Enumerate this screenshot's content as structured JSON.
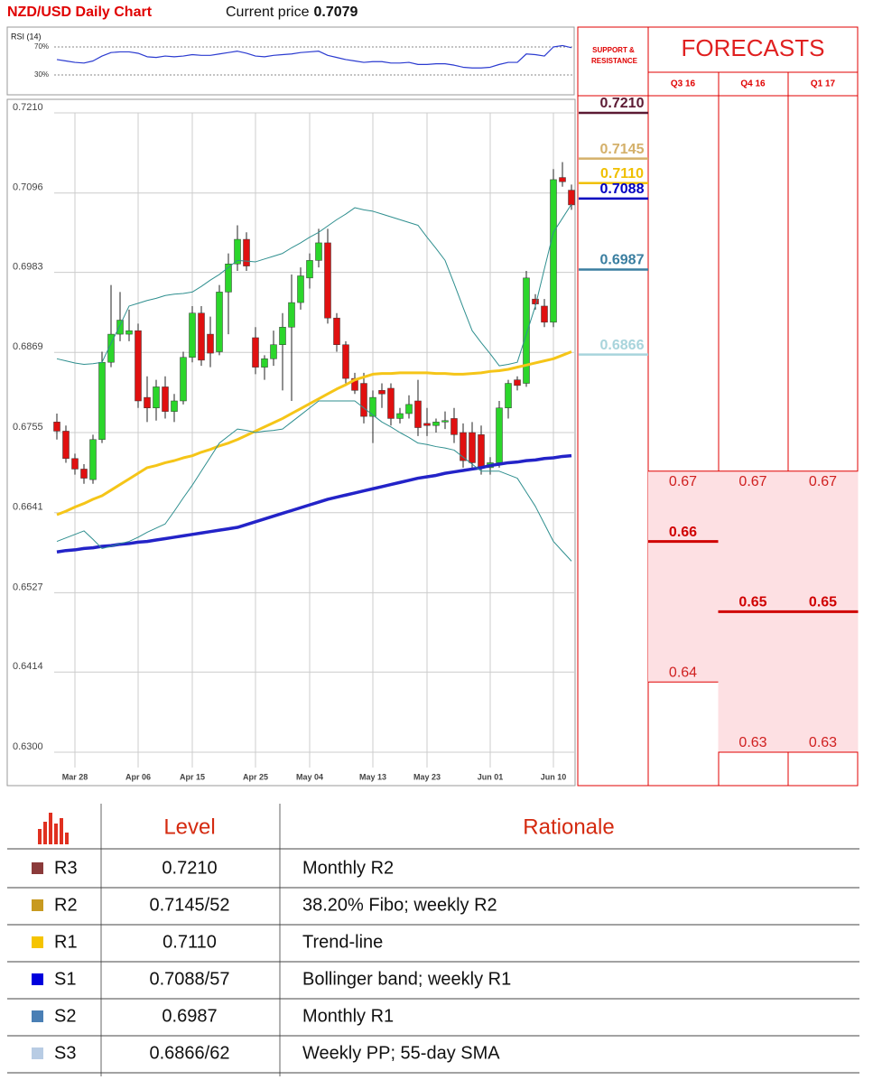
{
  "header": {
    "title": "NZD/USD Daily Chart",
    "current_price_label": "Current price",
    "current_price": 0.7079
  },
  "chart_data": [
    {
      "type": "line",
      "title": "RSI (14)",
      "ylim": [
        0,
        100
      ],
      "yticks": [
        {
          "value": 30,
          "label": "30%"
        },
        {
          "value": 70,
          "label": "70%"
        }
      ],
      "series": [
        {
          "color": "#2b3bd0",
          "values": [
            52,
            50,
            48,
            47,
            50,
            57,
            62,
            63,
            63,
            61,
            56,
            55,
            57,
            56,
            57,
            59,
            58,
            58,
            60,
            62,
            64,
            61,
            57,
            56,
            58,
            59,
            60,
            62,
            63,
            64,
            58,
            55,
            52,
            50,
            48,
            49,
            49,
            47,
            47,
            48,
            45,
            45,
            46,
            46,
            44,
            41,
            40,
            40,
            41,
            45,
            48,
            48,
            60,
            59,
            57,
            70,
            72,
            69
          ]
        }
      ]
    },
    {
      "type": "candlestick",
      "categories": [
        null,
        null,
        "Mar 28",
        null,
        null,
        null,
        null,
        null,
        null,
        "Apr 06",
        null,
        null,
        null,
        null,
        null,
        "Apr 15",
        null,
        null,
        null,
        null,
        null,
        null,
        "Apr 25",
        null,
        null,
        null,
        null,
        null,
        "May 04",
        null,
        null,
        null,
        null,
        null,
        null,
        "May 13",
        null,
        null,
        null,
        null,
        null,
        "May 23",
        null,
        null,
        null,
        null,
        null,
        null,
        "Jun 01",
        null,
        null,
        null,
        null,
        null,
        null,
        "Jun 10",
        null,
        null
      ],
      "open": [
        0.677,
        0.6757,
        0.6718,
        0.6703,
        0.6688,
        0.6745,
        0.6855,
        0.6895,
        0.6895,
        0.69,
        0.6805,
        0.679,
        0.682,
        0.6785,
        0.68,
        0.6862,
        0.6925,
        0.6895,
        0.687,
        0.6955,
        0.6995,
        0.703,
        0.689,
        0.6848,
        0.686,
        0.688,
        0.6905,
        0.694,
        0.6975,
        0.7,
        0.7025,
        0.6918,
        0.688,
        0.6832,
        0.6825,
        0.6778,
        0.6815,
        0.6818,
        0.6775,
        0.6782,
        0.68,
        0.6768,
        0.6765,
        0.677,
        0.6775,
        0.6755,
        0.6755,
        0.6752,
        0.6705,
        0.6712,
        0.679,
        0.683,
        0.6825,
        0.6945,
        0.6935,
        0.6912,
        0.7118,
        0.71
      ],
      "high": [
        0.6782,
        0.6765,
        0.6725,
        0.671,
        0.6752,
        0.687,
        0.6965,
        0.6955,
        0.693,
        0.691,
        0.6835,
        0.683,
        0.6835,
        0.681,
        0.687,
        0.6935,
        0.6935,
        0.692,
        0.6965,
        0.701,
        0.705,
        0.704,
        0.6905,
        0.6865,
        0.69,
        0.6925,
        0.698,
        0.699,
        0.701,
        0.7045,
        0.7045,
        0.6925,
        0.6885,
        0.684,
        0.684,
        0.6815,
        0.6825,
        0.6825,
        0.679,
        0.6808,
        0.683,
        0.679,
        0.6775,
        0.6785,
        0.679,
        0.6768,
        0.677,
        0.6765,
        0.672,
        0.68,
        0.683,
        0.6835,
        0.6985,
        0.6952,
        0.6945,
        0.713,
        0.714,
        0.7108
      ],
      "low": [
        0.6745,
        0.6712,
        0.6695,
        0.6682,
        0.6682,
        0.674,
        0.6848,
        0.6885,
        0.6885,
        0.679,
        0.677,
        0.6772,
        0.6775,
        0.677,
        0.6795,
        0.6855,
        0.685,
        0.6848,
        0.6865,
        0.6895,
        0.6985,
        0.6985,
        0.6838,
        0.683,
        0.685,
        0.6815,
        0.68,
        0.693,
        0.696,
        0.699,
        0.691,
        0.687,
        0.6825,
        0.681,
        0.6768,
        0.674,
        0.679,
        0.6765,
        0.6768,
        0.6775,
        0.675,
        0.675,
        0.6755,
        0.676,
        0.674,
        0.6705,
        0.6702,
        0.6695,
        0.6695,
        0.6705,
        0.6775,
        0.6815,
        0.682,
        0.693,
        0.6905,
        0.6905,
        0.7105,
        0.7072
      ],
      "close": [
        0.6757,
        0.6718,
        0.6703,
        0.669,
        0.6745,
        0.6855,
        0.6895,
        0.6915,
        0.69,
        0.68,
        0.679,
        0.682,
        0.6785,
        0.68,
        0.6862,
        0.6925,
        0.6858,
        0.6868,
        0.6955,
        0.6995,
        0.703,
        0.6992,
        0.6848,
        0.686,
        0.688,
        0.6905,
        0.694,
        0.6978,
        0.7,
        0.7025,
        0.6918,
        0.688,
        0.6832,
        0.6815,
        0.6778,
        0.6805,
        0.681,
        0.6775,
        0.6782,
        0.6795,
        0.6762,
        0.6765,
        0.677,
        0.6772,
        0.6752,
        0.6715,
        0.6712,
        0.6705,
        0.6712,
        0.679,
        0.6825,
        0.6822,
        0.6975,
        0.6938,
        0.6912,
        0.7115,
        0.7112,
        0.7079
      ],
      "up_color": "#2bd62b",
      "down_color": "#e01010",
      "series": [
        {
          "color": "#f5c518",
          "width": 3,
          "values": [
            0.6638,
            0.6643,
            0.6649,
            0.6654,
            0.666,
            0.6665,
            0.6673,
            0.6681,
            0.6689,
            0.6697,
            0.6705,
            0.6708,
            0.6712,
            0.6715,
            0.6719,
            0.6722,
            0.6727,
            0.6731,
            0.6736,
            0.674,
            0.6745,
            0.6751,
            0.6757,
            0.6763,
            0.6769,
            0.6775,
            0.6782,
            0.6789,
            0.6796,
            0.6803,
            0.681,
            0.6817,
            0.6823,
            0.683,
            0.6834,
            0.6838,
            0.6839,
            0.6839,
            0.684,
            0.684,
            0.684,
            0.684,
            0.6839,
            0.6839,
            0.6838,
            0.6838,
            0.6839,
            0.684,
            0.6842,
            0.6843,
            0.6845,
            0.6848,
            0.6851,
            0.6854,
            0.6857,
            0.686,
            0.6865,
            0.687
          ]
        },
        {
          "color": "#2323c8",
          "width": 3.5,
          "values": [
            0.6585,
            0.6587,
            0.6588,
            0.659,
            0.6591,
            0.6593,
            0.6594,
            0.6596,
            0.6597,
            0.6599,
            0.66,
            0.6602,
            0.6604,
            0.6606,
            0.6608,
            0.661,
            0.6612,
            0.6614,
            0.6616,
            0.6618,
            0.662,
            0.6624,
            0.6628,
            0.6632,
            0.6636,
            0.664,
            0.6644,
            0.6648,
            0.6652,
            0.6656,
            0.666,
            0.6663,
            0.6666,
            0.6669,
            0.6672,
            0.6675,
            0.6678,
            0.6681,
            0.6684,
            0.6687,
            0.669,
            0.6692,
            0.6694,
            0.6697,
            0.6699,
            0.6701,
            0.6703,
            0.6705,
            0.6708,
            0.671,
            0.6712,
            0.6713,
            0.6715,
            0.6716,
            0.6718,
            0.6719,
            0.6721,
            0.6722
          ]
        },
        {
          "color": "#2f8f8f",
          "width": 1,
          "values": [
            0.686,
            0.6857,
            0.6854,
            0.6852,
            0.6853,
            0.6855,
            0.6882,
            0.6908,
            0.6935,
            0.6939,
            0.6943,
            0.6946,
            0.695,
            0.6952,
            0.6953,
            0.6955,
            0.6963,
            0.6972,
            0.698,
            0.699,
            0.7,
            0.6999,
            0.6998,
            0.7002,
            0.7006,
            0.701,
            0.7018,
            0.7025,
            0.7033,
            0.704,
            0.7049,
            0.7058,
            0.7066,
            0.7075,
            0.7072,
            0.707,
            0.7066,
            0.7062,
            0.7058,
            0.7054,
            0.705,
            0.7033,
            0.7017,
            0.7,
            0.6967,
            0.6933,
            0.69,
            0.6883,
            0.6867,
            0.685,
            0.6852,
            0.6855,
            0.6895,
            0.6935,
            0.6988,
            0.704,
            0.706,
            0.708
          ]
        },
        {
          "color": "#2f8f8f",
          "width": 1,
          "values": [
            0.66,
            0.6605,
            0.661,
            0.6615,
            0.6603,
            0.659,
            0.6593,
            0.6597,
            0.66,
            0.6606,
            0.6613,
            0.6619,
            0.6625,
            0.6643,
            0.6662,
            0.668,
            0.67,
            0.672,
            0.674,
            0.675,
            0.676,
            0.6758,
            0.6755,
            0.6757,
            0.6758,
            0.676,
            0.677,
            0.678,
            0.679,
            0.68,
            0.68,
            0.68,
            0.68,
            0.68,
            0.679,
            0.678,
            0.677,
            0.6763,
            0.6755,
            0.6748,
            0.674,
            0.6738,
            0.6735,
            0.6733,
            0.673,
            0.672,
            0.671,
            0.67,
            0.67,
            0.67,
            0.6695,
            0.669,
            0.667,
            0.665,
            0.6625,
            0.66,
            0.6586,
            0.6572
          ]
        }
      ],
      "ylim": [
        0.63,
        0.721
      ],
      "yticks": [
        {
          "value": 0.721,
          "label": "0.7210"
        },
        0.7096,
        0.6983,
        0.6869,
        0.6755,
        0.6641,
        0.6527,
        0.6414,
        {
          "value": 0.63,
          "label": "0.6300"
        }
      ],
      "grid": true,
      "levels": {
        "title": "SUPPORT & RESISTANCE",
        "values": [
          {
            "value": 0.721,
            "label": "0.7210"
          },
          0.7145,
          {
            "value": 0.711,
            "label": "0.7110"
          },
          0.7088,
          0.6987,
          0.6866
        ],
        "colors": [
          "#5c1a33",
          "#d4b06a",
          "#f0c000",
          "#0000c0",
          "#3a7ea0",
          "#a8d4dc"
        ]
      },
      "forecasts": {
        "title": "FORECASTS",
        "periods": [
          "Q3 16",
          "Q4 16",
          "Q1 17"
        ],
        "high": [
          0.67,
          0.67,
          0.67
        ],
        "median": [
          0.66,
          0.65,
          0.65
        ],
        "low": [
          0.64,
          0.63,
          0.63
        ]
      }
    }
  ],
  "table": {
    "header": [
      "Level",
      "Rationale"
    ],
    "rows": [
      [
        "R3",
        "0.7210",
        "Monthly R2"
      ],
      [
        "R2",
        "0.7145/52",
        "38.20% Fibo; weekly R2"
      ],
      [
        "R1",
        "0.7110",
        "Trend-line"
      ],
      [
        "S1",
        "0.7088/57",
        "Bollinger band; weekly R1"
      ],
      [
        "S2",
        "0.6987",
        "Monthly R1"
      ],
      [
        "S3",
        "0.6866/62",
        "Weekly PP; 55-day SMA"
      ]
    ],
    "colors": [
      "#8b3a3a",
      "#c89a20",
      "#f5c400",
      "#0000dd",
      "#4a7fb5",
      "#b8cce4"
    ]
  }
}
